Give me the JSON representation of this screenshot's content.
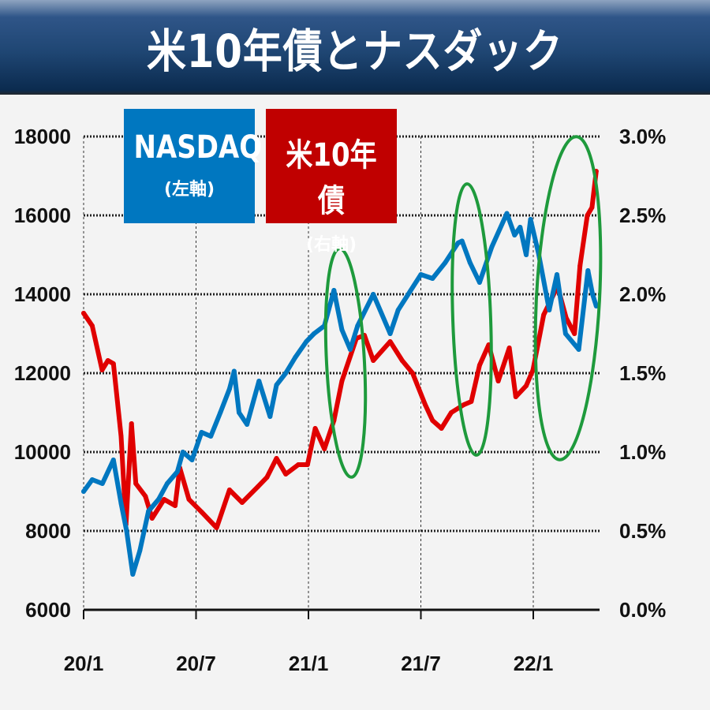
{
  "header": {
    "title": "米10年債とナスダック"
  },
  "legend": [
    {
      "main": "NASDAQ",
      "sub": "(左軸)",
      "color": "#0077c0"
    },
    {
      "main": "米10年債",
      "sub": "(右軸)",
      "color": "#c00000"
    }
  ],
  "chart_data": {
    "type": "line",
    "title": "米10年債とナスダック",
    "x_ticks": [
      {
        "label": "20/1",
        "date": "2020-01-01"
      },
      {
        "label": "20/7",
        "date": "2020-07-01"
      },
      {
        "label": "21/1",
        "date": "2021-01-01"
      },
      {
        "label": "21/7",
        "date": "2021-07-01"
      },
      {
        "label": "22/1",
        "date": "2022-01-01"
      }
    ],
    "left_axis": {
      "ylim": [
        6000,
        18000
      ],
      "ticks": [
        "6000",
        "8000",
        "10000",
        "12000",
        "14000",
        "16000",
        "18000"
      ]
    },
    "right_axis": {
      "ylim": [
        0,
        3.0
      ],
      "ticks": [
        "0.0%",
        "0.5%",
        "1.0%",
        "1.5%",
        "2.0%",
        "2.5%",
        "3.0%"
      ]
    },
    "grid": true,
    "series": [
      {
        "name": "NASDAQ",
        "axis": "left",
        "color": "#0077c0",
        "points": [
          [
            "2020-01-01",
            9000
          ],
          [
            "2020-01-15",
            9300
          ],
          [
            "2020-02-01",
            9200
          ],
          [
            "2020-02-19",
            9800
          ],
          [
            "2020-03-01",
            8700
          ],
          [
            "2020-03-10",
            8000
          ],
          [
            "2020-03-20",
            6900
          ],
          [
            "2020-04-01",
            7500
          ],
          [
            "2020-04-15",
            8500
          ],
          [
            "2020-05-01",
            8800
          ],
          [
            "2020-05-15",
            9200
          ],
          [
            "2020-06-01",
            9500
          ],
          [
            "2020-06-10",
            10000
          ],
          [
            "2020-06-25",
            9800
          ],
          [
            "2020-07-10",
            10500
          ],
          [
            "2020-07-25",
            10400
          ],
          [
            "2020-08-10",
            11000
          ],
          [
            "2020-08-25",
            11600
          ],
          [
            "2020-09-02",
            12050
          ],
          [
            "2020-09-10",
            11000
          ],
          [
            "2020-09-23",
            10700
          ],
          [
            "2020-10-12",
            11800
          ],
          [
            "2020-10-30",
            10900
          ],
          [
            "2020-11-10",
            11700
          ],
          [
            "2020-11-25",
            12000
          ],
          [
            "2020-12-10",
            12400
          ],
          [
            "2020-12-28",
            12800
          ],
          [
            "2021-01-10",
            13000
          ],
          [
            "2021-01-27",
            13200
          ],
          [
            "2021-02-12",
            14100
          ],
          [
            "2021-02-25",
            13100
          ],
          [
            "2021-03-08",
            12600
          ],
          [
            "2021-03-20",
            13200
          ],
          [
            "2021-04-15",
            14000
          ],
          [
            "2021-05-12",
            13000
          ],
          [
            "2021-05-25",
            13600
          ],
          [
            "2021-06-15",
            14100
          ],
          [
            "2021-07-01",
            14500
          ],
          [
            "2021-07-20",
            14400
          ],
          [
            "2021-08-10",
            14800
          ],
          [
            "2021-08-31",
            15300
          ],
          [
            "2021-09-07",
            15350
          ],
          [
            "2021-09-20",
            14800
          ],
          [
            "2021-10-05",
            14300
          ],
          [
            "2021-10-25",
            15200
          ],
          [
            "2021-11-19",
            16050
          ],
          [
            "2021-12-01",
            15500
          ],
          [
            "2021-12-10",
            15700
          ],
          [
            "2021-12-20",
            15000
          ],
          [
            "2021-12-27",
            15900
          ],
          [
            "2022-01-10",
            15000
          ],
          [
            "2022-01-27",
            13600
          ],
          [
            "2022-02-09",
            14500
          ],
          [
            "2022-02-23",
            13000
          ],
          [
            "2022-03-14",
            12600
          ],
          [
            "2022-03-29",
            14600
          ],
          [
            "2022-04-06",
            14000
          ],
          [
            "2022-04-12",
            13700
          ]
        ]
      },
      {
        "name": "米10年債",
        "axis": "right",
        "color": "#e00000",
        "points": [
          [
            "2020-01-01",
            1.88
          ],
          [
            "2020-01-15",
            1.8
          ],
          [
            "2020-01-31",
            1.52
          ],
          [
            "2020-02-10",
            1.58
          ],
          [
            "2020-02-19",
            1.56
          ],
          [
            "2020-03-01",
            1.1
          ],
          [
            "2020-03-09",
            0.54
          ],
          [
            "2020-03-18",
            1.18
          ],
          [
            "2020-03-25",
            0.8
          ],
          [
            "2020-04-10",
            0.72
          ],
          [
            "2020-04-21",
            0.58
          ],
          [
            "2020-05-10",
            0.7
          ],
          [
            "2020-05-28",
            0.66
          ],
          [
            "2020-06-05",
            0.9
          ],
          [
            "2020-06-20",
            0.7
          ],
          [
            "2020-07-10",
            0.62
          ],
          [
            "2020-08-04",
            0.52
          ],
          [
            "2020-08-25",
            0.76
          ],
          [
            "2020-09-15",
            0.68
          ],
          [
            "2020-10-10",
            0.78
          ],
          [
            "2020-10-25",
            0.84
          ],
          [
            "2020-11-10",
            0.96
          ],
          [
            "2020-11-25",
            0.86
          ],
          [
            "2020-12-15",
            0.92
          ],
          [
            "2020-12-30",
            0.92
          ],
          [
            "2021-01-12",
            1.15
          ],
          [
            "2021-01-27",
            1.02
          ],
          [
            "2021-02-12",
            1.2
          ],
          [
            "2021-02-25",
            1.45
          ],
          [
            "2021-03-18",
            1.72
          ],
          [
            "2021-03-31",
            1.74
          ],
          [
            "2021-04-15",
            1.58
          ],
          [
            "2021-05-12",
            1.7
          ],
          [
            "2021-06-01",
            1.58
          ],
          [
            "2021-06-18",
            1.5
          ],
          [
            "2021-07-08",
            1.3
          ],
          [
            "2021-07-20",
            1.2
          ],
          [
            "2021-08-04",
            1.15
          ],
          [
            "2021-08-20",
            1.25
          ],
          [
            "2021-09-10",
            1.3
          ],
          [
            "2021-09-22",
            1.32
          ],
          [
            "2021-10-05",
            1.55
          ],
          [
            "2021-10-20",
            1.68
          ],
          [
            "2021-11-05",
            1.45
          ],
          [
            "2021-11-23",
            1.66
          ],
          [
            "2021-12-03",
            1.35
          ],
          [
            "2021-12-20",
            1.42
          ],
          [
            "2021-12-31",
            1.52
          ],
          [
            "2022-01-18",
            1.87
          ],
          [
            "2022-02-10",
            2.05
          ],
          [
            "2022-02-24",
            1.85
          ],
          [
            "2022-03-07",
            1.75
          ],
          [
            "2022-03-16",
            2.18
          ],
          [
            "2022-03-28",
            2.5
          ],
          [
            "2022-04-05",
            2.55
          ],
          [
            "2022-04-12",
            2.78
          ]
        ]
      }
    ],
    "annotations": [
      {
        "shape": "ellipse",
        "color": "#1e9a3c"
      },
      {
        "shape": "ellipse",
        "color": "#1e9a3c"
      },
      {
        "shape": "ellipse",
        "color": "#1e9a3c"
      }
    ]
  }
}
